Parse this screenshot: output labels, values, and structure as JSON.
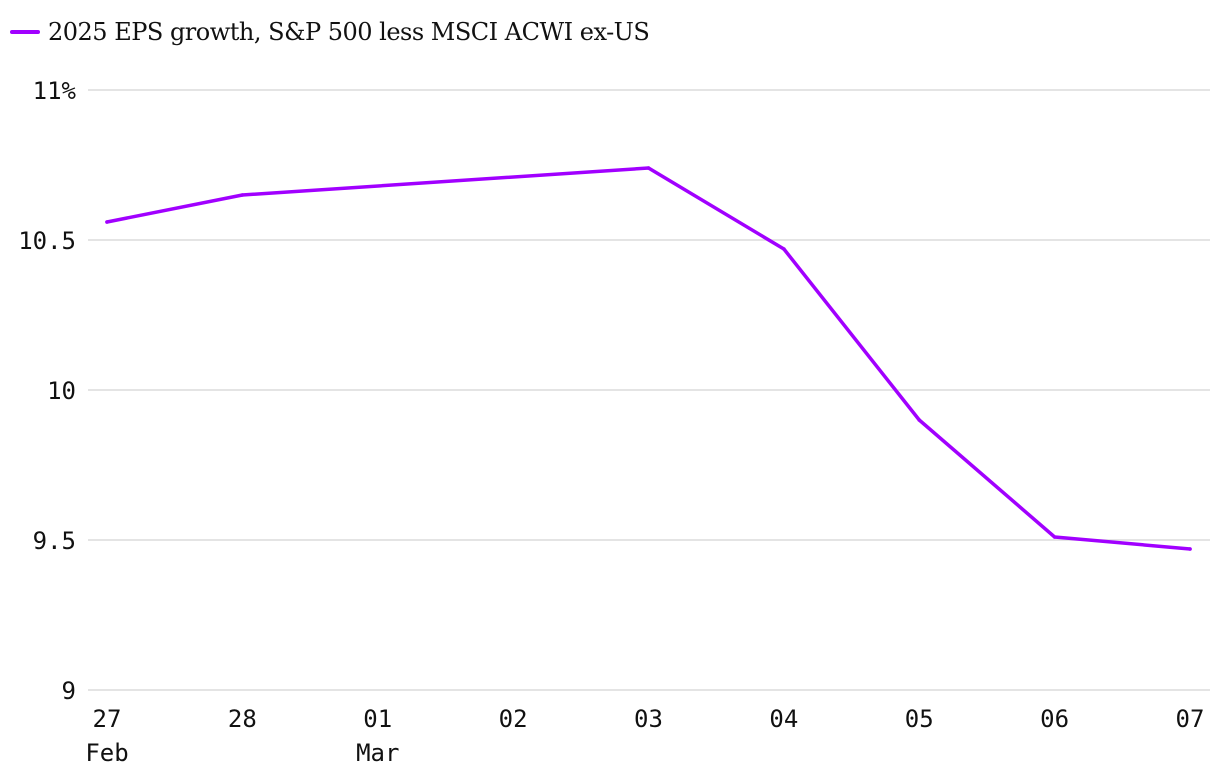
{
  "chart_data": {
    "type": "line",
    "title": "",
    "xlabel": "",
    "ylabel": "",
    "ylim": [
      9,
      11
    ],
    "y_ticks": [
      {
        "value": 11,
        "label": "11%"
      },
      {
        "value": 10.5,
        "label": "10.5"
      },
      {
        "value": 10,
        "label": "10"
      },
      {
        "value": 9.5,
        "label": "9.5"
      },
      {
        "value": 9,
        "label": "9"
      }
    ],
    "categories": [
      "27",
      "28",
      "01",
      "02",
      "03",
      "04",
      "05",
      "06",
      "07"
    ],
    "sub_labels": [
      "Feb",
      "",
      "Mar",
      "",
      "",
      "",
      "",
      "",
      ""
    ],
    "series": [
      {
        "name": "2025 EPS growth, S&P 500 less MSCI ACWI ex-US",
        "color": "#a100ff",
        "values": [
          10.56,
          10.65,
          null,
          null,
          10.74,
          10.47,
          9.9,
          9.51,
          9.47
        ]
      }
    ],
    "grid": true,
    "legend_position": "top-left"
  }
}
